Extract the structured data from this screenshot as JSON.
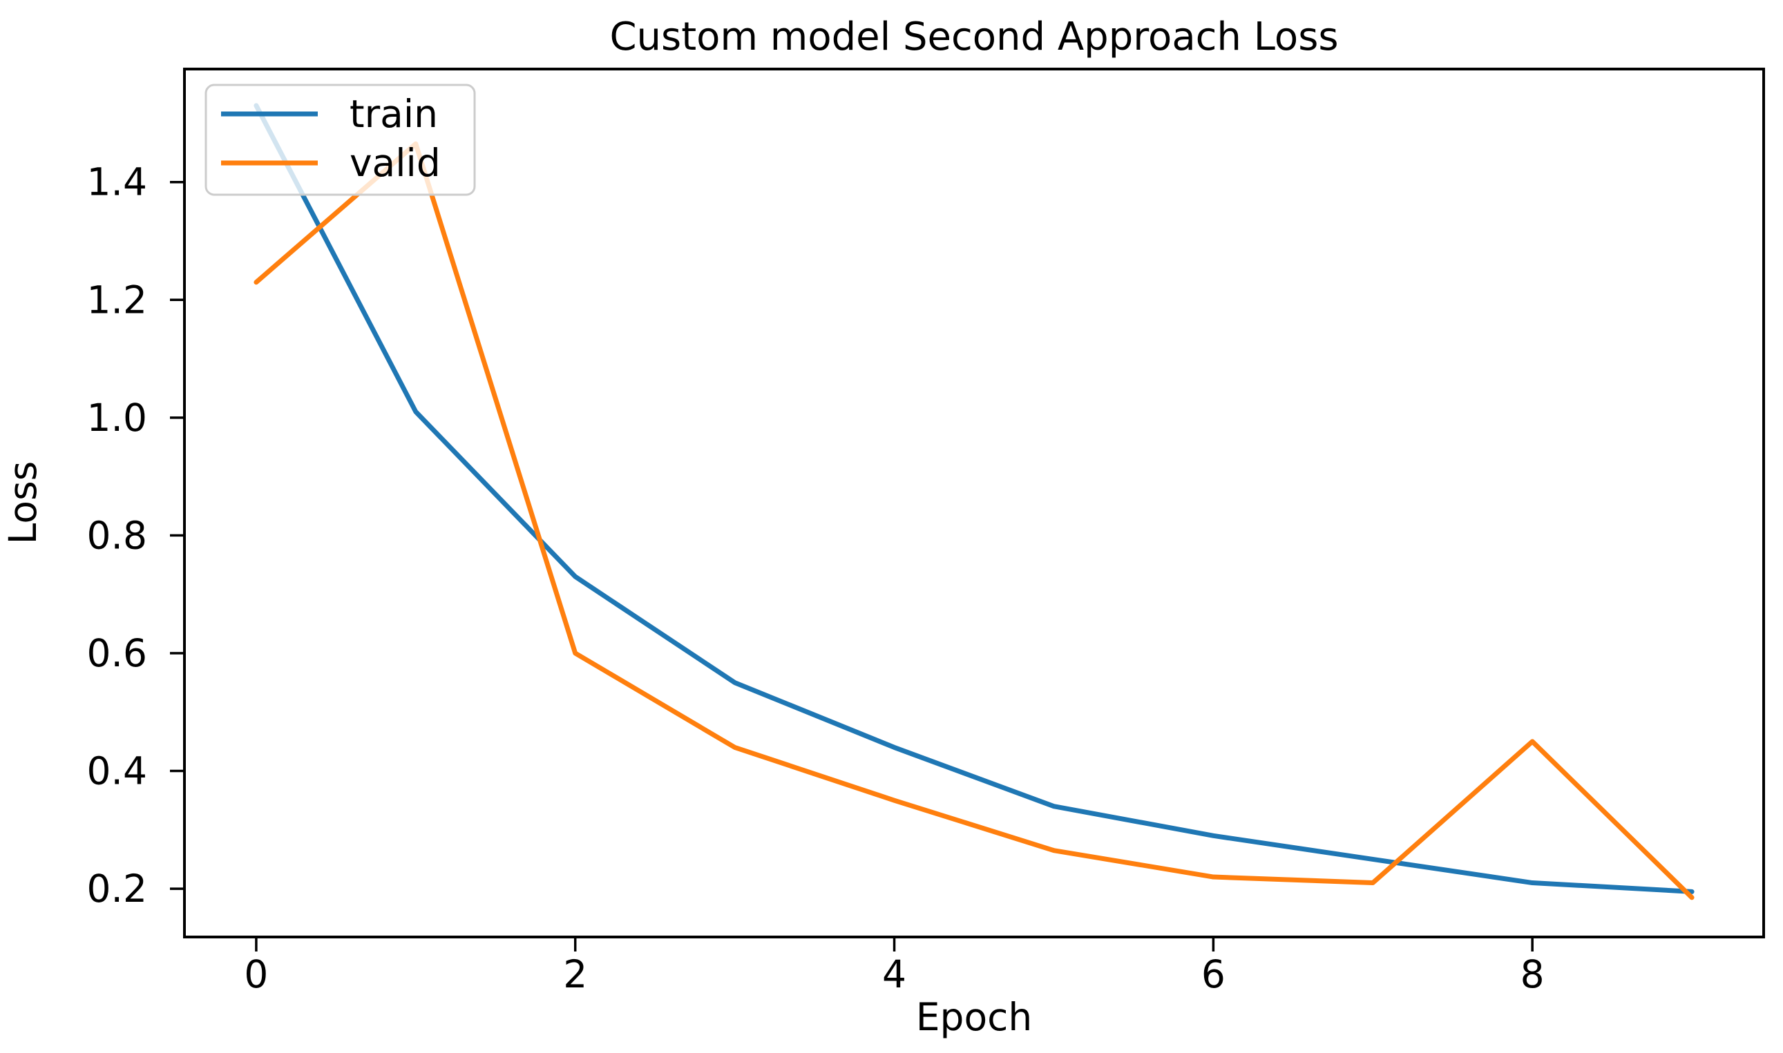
{
  "figure": {
    "background": "#ffffff",
    "text_color": "#000000",
    "spine_color": "#000000"
  },
  "chart_data": {
    "type": "line",
    "title": "Custom model Second Approach Loss",
    "xlabel": "Epoch",
    "ylabel": "Loss",
    "x": [
      0,
      1,
      2,
      3,
      4,
      5,
      6,
      7,
      8,
      9
    ],
    "series": [
      {
        "name": "train",
        "color": "#1f77b4",
        "values": [
          1.53,
          1.01,
          0.73,
          0.55,
          0.44,
          0.34,
          0.29,
          0.25,
          0.21,
          0.195
        ]
      },
      {
        "name": "valid",
        "color": "#ff7f0e",
        "values": [
          1.23,
          1.465,
          0.6,
          0.44,
          0.35,
          0.265,
          0.22,
          0.21,
          0.45,
          0.185
        ]
      }
    ],
    "xlim": [
      -0.45,
      9.45
    ],
    "ylim": [
      0.118,
      1.592
    ],
    "xticks": [
      0,
      2,
      4,
      6,
      8
    ],
    "yticks": [
      0.2,
      0.4,
      0.6,
      0.8,
      1.0,
      1.2,
      1.4
    ],
    "grid": false,
    "legend": {
      "position": "upper left",
      "entries": [
        "train",
        "valid"
      ],
      "frame_alpha": 0.8
    }
  }
}
